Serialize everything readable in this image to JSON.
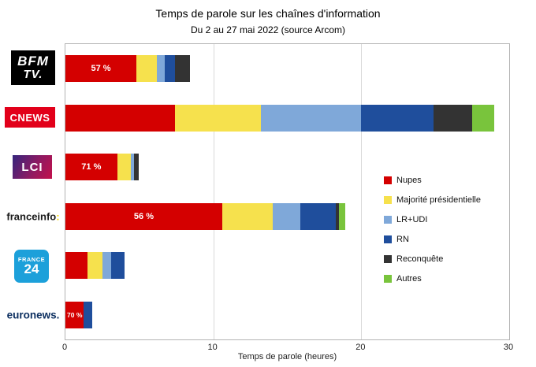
{
  "logos": {
    "bfmtv": {
      "line1": "BFM",
      "line2": "TV."
    },
    "cnews": {
      "text": "CNEWS"
    },
    "lci": {
      "text": "LCI"
    },
    "franceinfo": {
      "text": "franceinfo",
      "colon": ":"
    },
    "france24": {
      "line1": "FRANCE",
      "line2": "24"
    },
    "euronews": {
      "text": "euronews."
    }
  },
  "chart_data": {
    "type": "bar",
    "orientation": "horizontal",
    "title": "Temps de parole sur les chaînes d'information",
    "subtitle": "Du 2 au 27 mai 2022 (source Arcom)",
    "xlabel": "Temps de parole (heures)",
    "xlim": [
      0,
      30
    ],
    "xticks": [
      0,
      10,
      20,
      30
    ],
    "grid": true,
    "legend_position": "center-right",
    "categories": [
      "BFM TV",
      "CNEWS",
      "LCI",
      "franceinfo",
      "FRANCE 24",
      "euronews"
    ],
    "series": [
      {
        "name": "Nupes",
        "color": "#d40000",
        "values": [
          4.8,
          7.4,
          3.5,
          10.6,
          1.5,
          1.25
        ]
      },
      {
        "name": "Majorité présidentielle",
        "color": "#f6e14d",
        "values": [
          1.4,
          5.8,
          0.9,
          3.4,
          1.0,
          0
        ]
      },
      {
        "name": "LR+UDI",
        "color": "#7fa8d9",
        "values": [
          0.5,
          6.8,
          0.25,
          1.9,
          0.6,
          0
        ]
      },
      {
        "name": "RN",
        "color": "#1f4e9c",
        "values": [
          0.7,
          4.9,
          0,
          2.4,
          0.9,
          0.55
        ]
      },
      {
        "name": "Reconquête",
        "color": "#333333",
        "values": [
          1.0,
          2.6,
          0.3,
          0.2,
          0,
          0
        ]
      },
      {
        "name": "Autres",
        "color": "#79c43c",
        "values": [
          0,
          1.5,
          0,
          0.4,
          0,
          0
        ]
      }
    ],
    "bar_labels": [
      "57 %",
      "",
      "71 %",
      "56 %",
      "",
      "70 %"
    ]
  }
}
